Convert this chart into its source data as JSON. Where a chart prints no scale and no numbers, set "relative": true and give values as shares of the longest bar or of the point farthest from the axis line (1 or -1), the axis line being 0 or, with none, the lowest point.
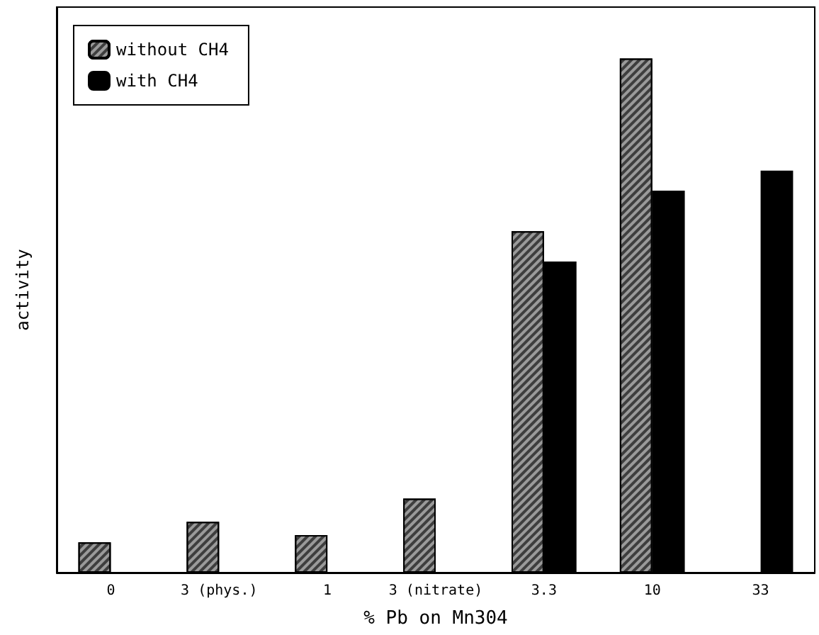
{
  "chart_data": {
    "type": "bar",
    "relative": true,
    "xlabel": "% Pb on Mn304",
    "ylabel": "activity",
    "categories": [
      "0",
      "3 (phys.)",
      "1",
      "3 (nitrate)",
      "3.3",
      "10",
      "33"
    ],
    "series": [
      {
        "name": "without CH4",
        "color": "#9a9a9a",
        "values": [
          0.059,
          0.099,
          0.073,
          0.144,
          0.664,
          1,
          null
        ]
      },
      {
        "name": "with CH4",
        "color": "#000000",
        "values": [
          null,
          null,
          null,
          null,
          0.605,
          0.743,
          0.782
        ]
      }
    ],
    "legend": "top left",
    "grid": false
  }
}
